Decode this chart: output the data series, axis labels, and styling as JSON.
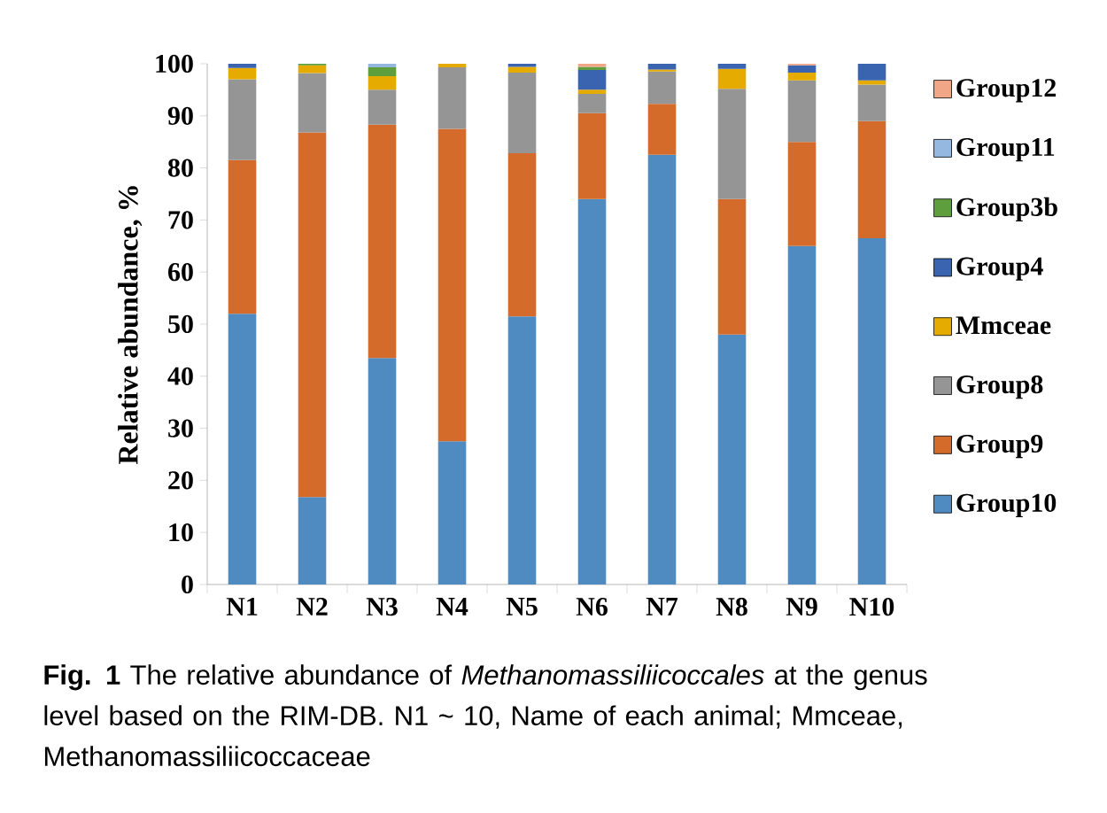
{
  "chart_data": {
    "type": "bar",
    "stacked": true,
    "ylabel": "Relative abundance, %",
    "categories": [
      "N1",
      "N2",
      "N3",
      "N4",
      "N5",
      "N6",
      "N7",
      "N8",
      "N9",
      "N10"
    ],
    "series": [
      {
        "name": "Group10",
        "color": "#4f8bc0",
        "values": [
          52,
          16.8,
          43.5,
          27.5,
          51.5,
          74,
          82.5,
          48,
          65,
          66.5
        ]
      },
      {
        "name": "Group9",
        "color": "#d56b2a",
        "values": [
          29.5,
          70,
          44.8,
          60,
          31.3,
          16.5,
          9.8,
          26,
          20,
          22.5
        ]
      },
      {
        "name": "Group8",
        "color": "#959595",
        "values": [
          15.5,
          11.4,
          6.7,
          11.8,
          15.5,
          3.7,
          6.2,
          21.2,
          11.8,
          7
        ]
      },
      {
        "name": "Mmceae",
        "color": "#e5ab00",
        "values": [
          2.2,
          1.5,
          2.6,
          0.7,
          1.1,
          0.8,
          0.4,
          3.8,
          1.5,
          0.8
        ]
      },
      {
        "name": "Group4",
        "color": "#3a63b0",
        "values": [
          0.8,
          null,
          null,
          null,
          0.6,
          3.8,
          1.1,
          1.0,
          1.4,
          3.2
        ]
      },
      {
        "name": "Group3b",
        "color": "#5e9e3c",
        "values": [
          null,
          0.3,
          1.7,
          null,
          null,
          0.6,
          null,
          null,
          null,
          null
        ]
      },
      {
        "name": "Group11",
        "color": "#94b8e0",
        "values": [
          null,
          null,
          0.7,
          null,
          null,
          null,
          null,
          null,
          null,
          null
        ]
      },
      {
        "name": "Group12",
        "color": "#f2a688",
        "values": [
          null,
          null,
          null,
          null,
          null,
          0.6,
          null,
          null,
          0.3,
          null
        ]
      }
    ],
    "ylim": [
      0,
      100
    ],
    "yticks": [
      0,
      10,
      20,
      30,
      40,
      50,
      60,
      70,
      80,
      90,
      100
    ],
    "legend": "right",
    "annotations": [
      "**Fig. 1** The relative abundance of *Methanomassiliicoccales* at the genus level based on the RIM-DB. N1 ~ 10, Name of each animal; Mmceae, Methanomassiliicoccaceae"
    ]
  }
}
